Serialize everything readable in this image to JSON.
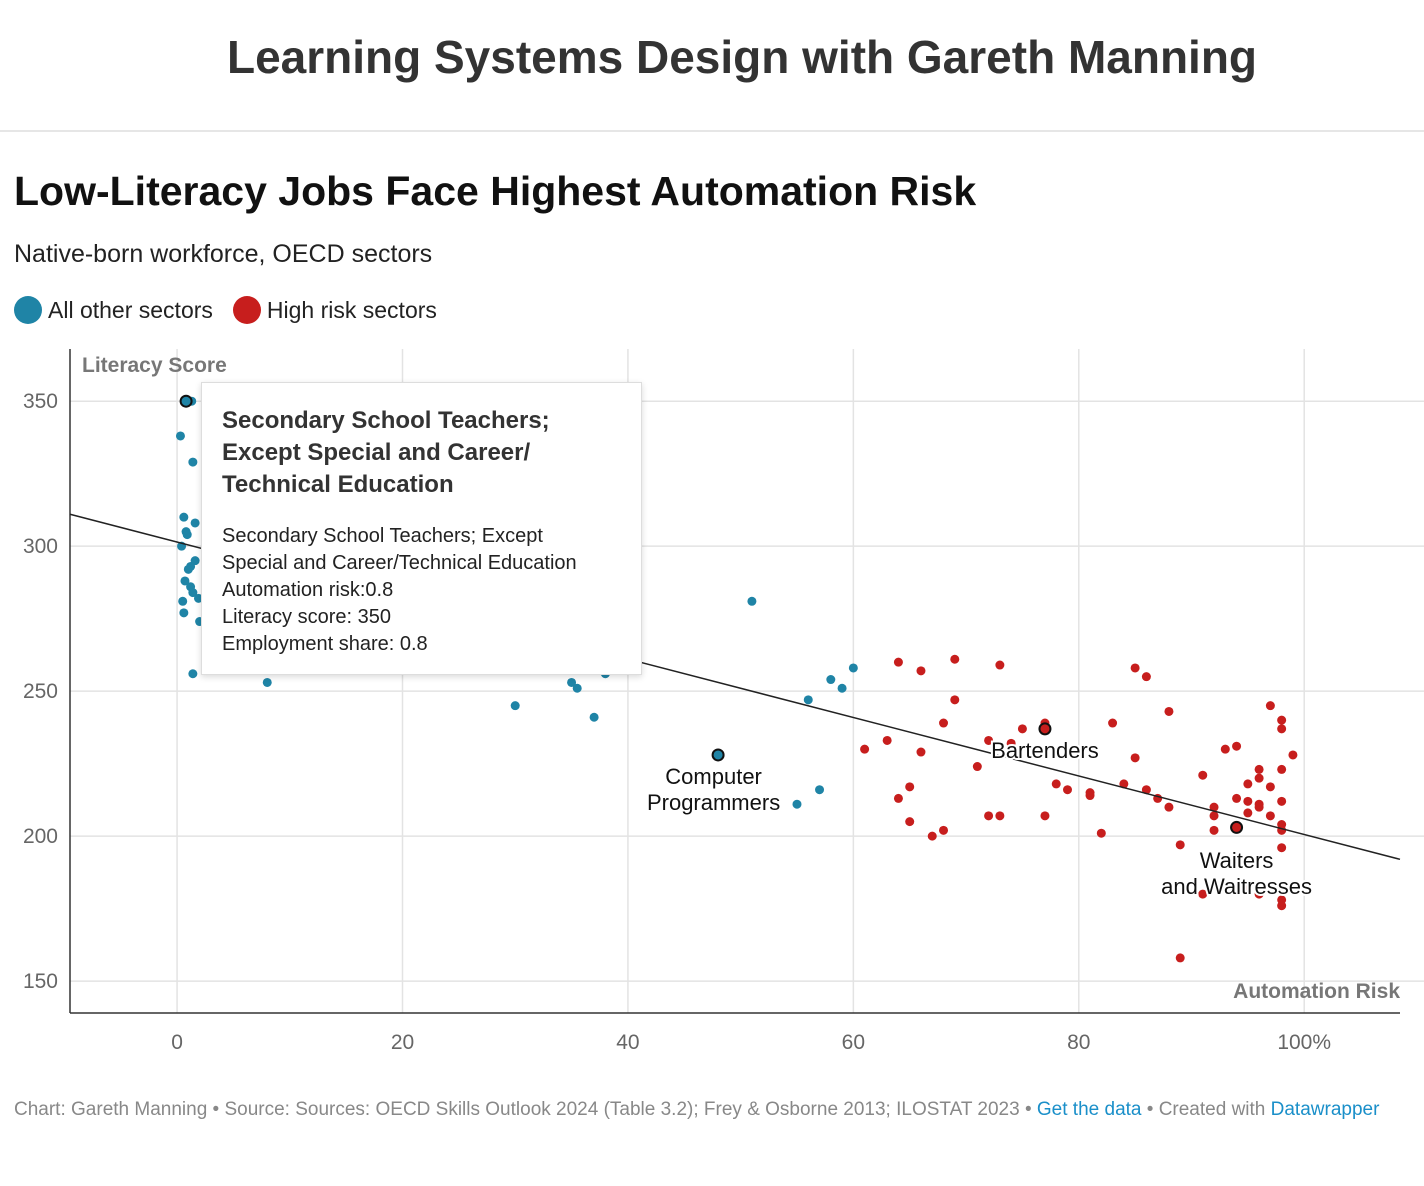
{
  "site": {
    "title": "Learning Systems Design with Gareth Manning"
  },
  "chart": {
    "title": "Low-Literacy Jobs Face Highest Automation Risk",
    "subtitle": "Native-born workforce, OECD sectors",
    "legend": [
      {
        "label": "All other sectors",
        "color": "#1f84a6"
      },
      {
        "label": "High risk sectors",
        "color": "#c71e1d"
      }
    ]
  },
  "chart_data": {
    "type": "scatter",
    "title": "Low-Literacy Jobs Face Highest Automation Risk",
    "subtitle": "Native-born workforce, OECD sectors",
    "xlabel": "Automation Risk",
    "ylabel": "Literacy Score",
    "xlim": [
      -9.5,
      108.5
    ],
    "ylim": [
      139,
      368
    ],
    "x_ticks": [
      0,
      20,
      40,
      60,
      80,
      100
    ],
    "x_tick_labels": [
      "0",
      "20",
      "40",
      "60",
      "80",
      "100%"
    ],
    "y_ticks": [
      150,
      200,
      250,
      300,
      350
    ],
    "y_tick_labels": [
      "150",
      "200",
      "250",
      "300",
      "350"
    ],
    "grid": true,
    "legend_position": "top-left",
    "trendline": {
      "x": [
        -9.5,
        108.5
      ],
      "y": [
        311,
        192
      ]
    },
    "series": [
      {
        "name": "All other sectors",
        "color": "#1f84a6",
        "points": [
          [
            0.8,
            350
          ],
          [
            1.3,
            350
          ],
          [
            0.3,
            338
          ],
          [
            1.4,
            329
          ],
          [
            0.6,
            310
          ],
          [
            1.6,
            308
          ],
          [
            0.8,
            305
          ],
          [
            0.9,
            304
          ],
          [
            0.4,
            300
          ],
          [
            1.6,
            295
          ],
          [
            1.2,
            293
          ],
          [
            1.0,
            292
          ],
          [
            0.7,
            288
          ],
          [
            1.2,
            286
          ],
          [
            1.4,
            284
          ],
          [
            1.9,
            282
          ],
          [
            0.5,
            281
          ],
          [
            0.6,
            277
          ],
          [
            2.0,
            274
          ],
          [
            1.4,
            256
          ],
          [
            8.0,
            253
          ],
          [
            30.0,
            245
          ],
          [
            35.0,
            253
          ],
          [
            35.5,
            251
          ],
          [
            37.0,
            241
          ],
          [
            38.0,
            256
          ],
          [
            51.0,
            281
          ],
          [
            55.0,
            211
          ],
          [
            56.0,
            247
          ],
          [
            57.0,
            216
          ],
          [
            58.0,
            254
          ],
          [
            59.0,
            251
          ],
          [
            60.0,
            258
          ]
        ]
      },
      {
        "name": "High risk sectors",
        "color": "#c71e1d",
        "points": [
          [
            61,
            230
          ],
          [
            63,
            233
          ],
          [
            64,
            260
          ],
          [
            64,
            213
          ],
          [
            65,
            217
          ],
          [
            65,
            205
          ],
          [
            66,
            257
          ],
          [
            66,
            229
          ],
          [
            67,
            200
          ],
          [
            68,
            239
          ],
          [
            68,
            202
          ],
          [
            69,
            261
          ],
          [
            69,
            247
          ],
          [
            71,
            224
          ],
          [
            72,
            233
          ],
          [
            72,
            207
          ],
          [
            73,
            259
          ],
          [
            73,
            207
          ],
          [
            74,
            232
          ],
          [
            75,
            237
          ],
          [
            77,
            239
          ],
          [
            77,
            207
          ],
          [
            78,
            218
          ],
          [
            79,
            216
          ],
          [
            81,
            215
          ],
          [
            81,
            214
          ],
          [
            82,
            201
          ],
          [
            83,
            239
          ],
          [
            84,
            218
          ],
          [
            85,
            258
          ],
          [
            85,
            227
          ],
          [
            86,
            255
          ],
          [
            86,
            216
          ],
          [
            87,
            213
          ],
          [
            88,
            243
          ],
          [
            88,
            210
          ],
          [
            89,
            197
          ],
          [
            89,
            158
          ],
          [
            91,
            221
          ],
          [
            91,
            180
          ],
          [
            92,
            210
          ],
          [
            92,
            207
          ],
          [
            92,
            202
          ],
          [
            93,
            230
          ],
          [
            94,
            231
          ],
          [
            94,
            213
          ],
          [
            95,
            218
          ],
          [
            95,
            212
          ],
          [
            95,
            208
          ],
          [
            95,
            182
          ],
          [
            96,
            223
          ],
          [
            96,
            220
          ],
          [
            96,
            211
          ],
          [
            96,
            210
          ],
          [
            96,
            180
          ],
          [
            97,
            245
          ],
          [
            97,
            217
          ],
          [
            97,
            207
          ],
          [
            98,
            240
          ],
          [
            98,
            237
          ],
          [
            98,
            223
          ],
          [
            98,
            212
          ],
          [
            98,
            204
          ],
          [
            98,
            202
          ],
          [
            98,
            196
          ],
          [
            98,
            178
          ],
          [
            98,
            176
          ],
          [
            99,
            228
          ]
        ]
      }
    ],
    "highlighted": [
      {
        "label": "Secondary School Teachers; Except Special and Career/Technical Education",
        "x": 0.8,
        "y": 350,
        "color": "#1f84a6"
      },
      {
        "label": "Computer Programmers",
        "x": 48,
        "y": 228,
        "color": "#1f84a6"
      },
      {
        "label": "Bartenders",
        "x": 77,
        "y": 237,
        "color": "#c71e1d"
      },
      {
        "label": "Waiters and Waitresses",
        "x": 94,
        "y": 203,
        "color": "#c71e1d"
      }
    ],
    "annotations": [
      {
        "lines": [
          "Computer",
          "Programmers"
        ],
        "x": 47.6,
        "y": 218
      },
      {
        "lines": [
          "Bartenders"
        ],
        "x": 77,
        "y": 227
      },
      {
        "lines": [
          "Waiters",
          "and Waitresses"
        ],
        "x": 94,
        "y": 189
      }
    ]
  },
  "tooltip": {
    "title_lines": [
      "Secondary School Teachers;",
      "Except Special and Career/",
      "Technical Education"
    ],
    "body_lines": [
      "Secondary School Teachers; Except",
      "Special and Career/Technical Education",
      "Automation risk:0.8",
      "Literacy score: 350",
      "Employment share: 0.8"
    ]
  },
  "footer": {
    "credit": "Chart: Gareth Manning • Source: Sources: OECD Skills Outlook 2024 (Table 3.2); Frey & Osborne 2013; ILOSTAT 2023 •",
    "data_link": "Get the data",
    "created_with": "• Created with",
    "tool_link": "Datawrapper"
  }
}
